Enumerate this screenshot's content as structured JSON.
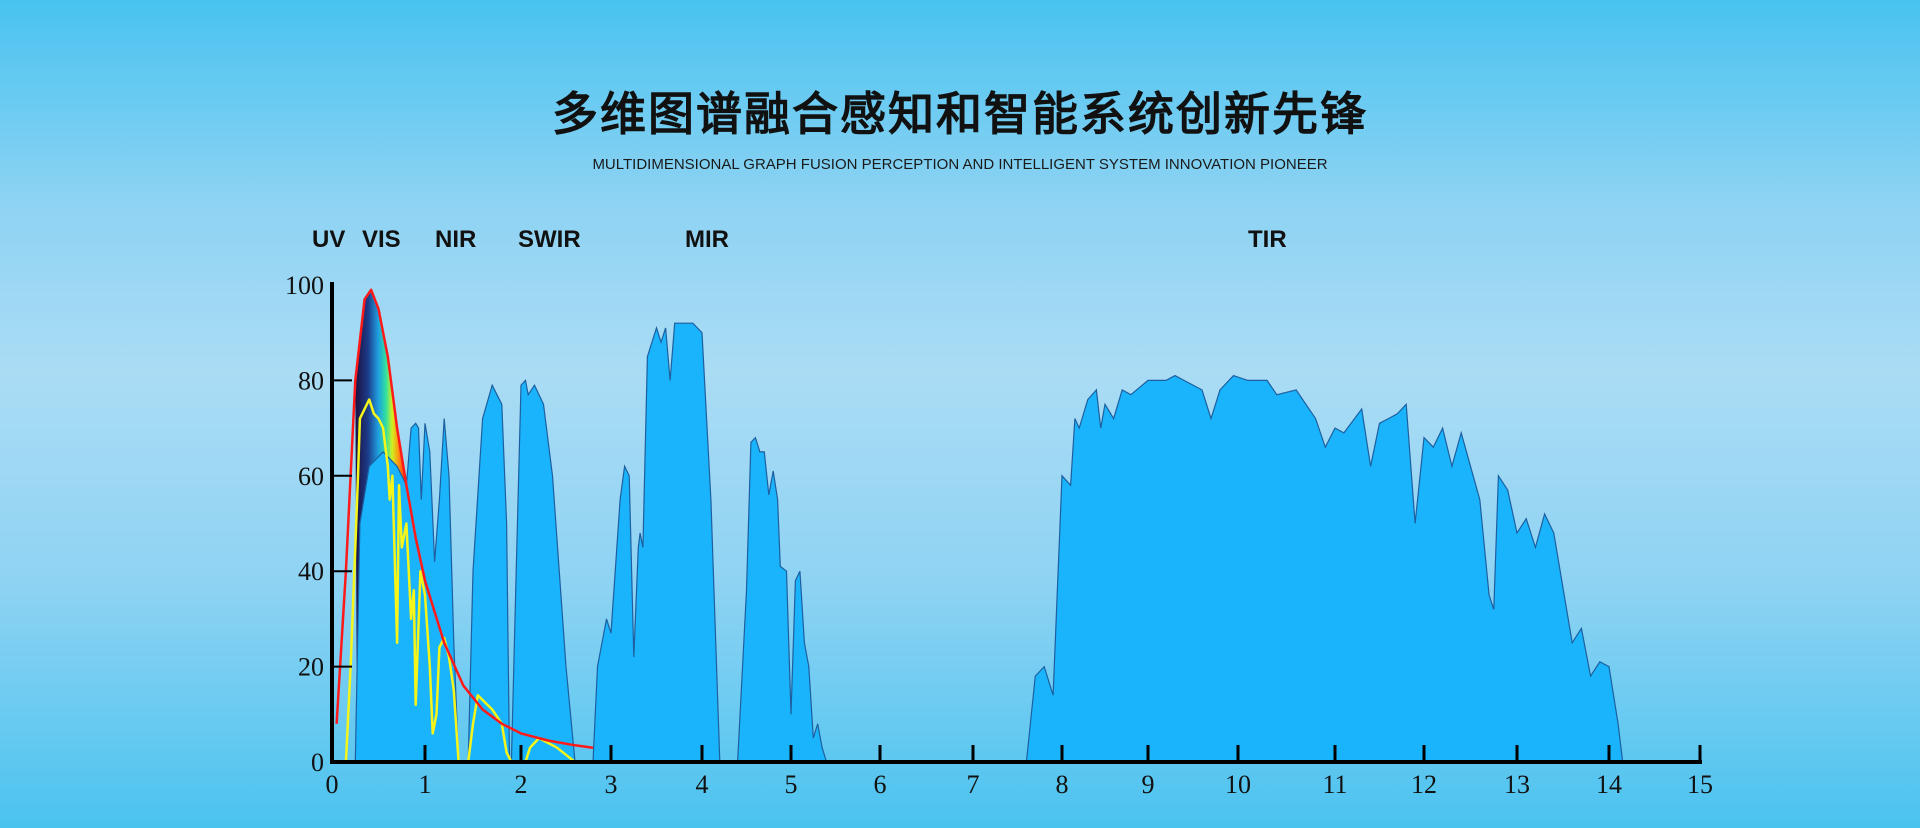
{
  "header": {
    "title": "多维图谱融合感知和智能系统创新先锋",
    "subtitle": "MULTIDIMENSIONAL GRAPH FUSION PERCEPTION AND INTELLIGENT SYSTEM INNOVATION PIONEER"
  },
  "chart_data": {
    "type": "area",
    "title": "",
    "xlabel": "",
    "ylabel": "",
    "xlim": [
      0,
      15
    ],
    "ylim": [
      0,
      100
    ],
    "x_ticks": [
      "0",
      "1",
      "2",
      "3",
      "4",
      "5",
      "6",
      "7",
      "8",
      "9",
      "10",
      "11",
      "12",
      "13",
      "14",
      "15"
    ],
    "y_ticks": [
      "0",
      "20",
      "40",
      "60",
      "80",
      "100"
    ],
    "grid": false,
    "band_labels": [
      "UV",
      "VIS",
      "NIR",
      "SWIR",
      "MIR",
      "TIR"
    ],
    "colors": {
      "transmission_fill": "#1ab4fc",
      "transmission_stroke": "#1d5fa0",
      "planck_curve": "#ff1a1a",
      "solar_curve": "#f5f51a"
    },
    "series": [
      {
        "kind": "transmission-area",
        "segments": [
          [
            [
              0.25,
              0
            ],
            [
              0.3,
              50
            ],
            [
              0.4,
              62
            ],
            [
              0.55,
              65
            ],
            [
              0.7,
              62
            ],
            [
              0.8,
              58
            ],
            [
              0.85,
              70
            ],
            [
              0.9,
              71
            ],
            [
              0.93,
              70
            ],
            [
              0.96,
              55
            ],
            [
              1.0,
              71
            ],
            [
              1.05,
              65
            ],
            [
              1.1,
              42
            ],
            [
              1.15,
              55
            ],
            [
              1.2,
              72
            ],
            [
              1.25,
              60
            ],
            [
              1.3,
              25
            ],
            [
              1.35,
              0
            ]
          ],
          [
            [
              1.45,
              0
            ],
            [
              1.5,
              40
            ],
            [
              1.6,
              72
            ],
            [
              1.7,
              79
            ],
            [
              1.8,
              75
            ],
            [
              1.85,
              50
            ],
            [
              1.88,
              0
            ]
          ],
          [
            [
              1.9,
              0
            ],
            [
              1.95,
              40
            ],
            [
              2.0,
              79
            ],
            [
              2.05,
              80
            ],
            [
              2.08,
              77
            ],
            [
              2.15,
              79
            ],
            [
              2.25,
              75
            ],
            [
              2.35,
              60
            ],
            [
              2.5,
              20
            ],
            [
              2.6,
              0
            ]
          ],
          [
            [
              2.8,
              0
            ],
            [
              2.85,
              20
            ],
            [
              2.95,
              30
            ],
            [
              3.0,
              27
            ],
            [
              3.1,
              55
            ],
            [
              3.15,
              62
            ],
            [
              3.2,
              60
            ],
            [
              3.25,
              22
            ],
            [
              3.3,
              45
            ],
            [
              3.32,
              48
            ],
            [
              3.35,
              45
            ],
            [
              3.4,
              85
            ],
            [
              3.5,
              91
            ],
            [
              3.55,
              88
            ],
            [
              3.6,
              91
            ],
            [
              3.65,
              80
            ],
            [
              3.7,
              92
            ],
            [
              3.9,
              92
            ],
            [
              4.0,
              90
            ],
            [
              4.1,
              55
            ],
            [
              4.2,
              0
            ]
          ],
          [
            [
              4.4,
              0
            ],
            [
              4.5,
              36
            ],
            [
              4.55,
              67
            ],
            [
              4.6,
              68
            ],
            [
              4.65,
              65
            ],
            [
              4.7,
              65
            ],
            [
              4.75,
              56
            ],
            [
              4.8,
              61
            ],
            [
              4.85,
              55
            ],
            [
              4.88,
              41
            ],
            [
              4.95,
              40
            ],
            [
              5.0,
              10
            ],
            [
              5.05,
              38
            ],
            [
              5.1,
              40
            ],
            [
              5.15,
              25
            ],
            [
              5.2,
              20
            ],
            [
              5.25,
              5
            ],
            [
              5.3,
              8
            ],
            [
              5.35,
              3
            ],
            [
              5.4,
              0
            ]
          ],
          [
            [
              7.6,
              0
            ],
            [
              7.7,
              18
            ],
            [
              7.8,
              20
            ],
            [
              7.9,
              14
            ],
            [
              8.0,
              60
            ],
            [
              8.1,
              58
            ],
            [
              8.15,
              72
            ],
            [
              8.2,
              70
            ],
            [
              8.3,
              76
            ],
            [
              8.4,
              78
            ],
            [
              8.45,
              70
            ],
            [
              8.5,
              75
            ],
            [
              8.6,
              72
            ],
            [
              8.7,
              78
            ],
            [
              8.8,
              77
            ],
            [
              9.0,
              80
            ],
            [
              9.2,
              80
            ],
            [
              9.3,
              81
            ],
            [
              9.4,
              80
            ],
            [
              9.6,
              78
            ],
            [
              9.7,
              72
            ],
            [
              9.8,
              78
            ],
            [
              9.95,
              81
            ],
            [
              10.1,
              80
            ],
            [
              10.3,
              80
            ],
            [
              10.4,
              77
            ],
            [
              10.6,
              78
            ],
            [
              10.7,
              75
            ],
            [
              10.8,
              72
            ],
            [
              10.9,
              66
            ],
            [
              11.0,
              70
            ],
            [
              11.1,
              69
            ],
            [
              11.3,
              74
            ],
            [
              11.4,
              62
            ],
            [
              11.5,
              71
            ],
            [
              11.6,
              72
            ],
            [
              11.7,
              73
            ],
            [
              11.8,
              75
            ],
            [
              11.9,
              50
            ],
            [
              12.0,
              68
            ],
            [
              12.1,
              66
            ],
            [
              12.2,
              70
            ],
            [
              12.3,
              62
            ],
            [
              12.4,
              69
            ],
            [
              12.6,
              55
            ],
            [
              12.7,
              35
            ],
            [
              12.75,
              32
            ],
            [
              12.8,
              60
            ],
            [
              12.9,
              57
            ],
            [
              13.0,
              48
            ],
            [
              13.1,
              51
            ],
            [
              13.2,
              45
            ],
            [
              13.3,
              52
            ],
            [
              13.4,
              48
            ],
            [
              13.6,
              25
            ],
            [
              13.7,
              28
            ],
            [
              13.8,
              18
            ],
            [
              13.9,
              21
            ],
            [
              14.0,
              20
            ],
            [
              14.1,
              8
            ],
            [
              14.15,
              0
            ]
          ]
        ]
      },
      {
        "kind": "planck-curve",
        "points": [
          [
            0.05,
            8
          ],
          [
            0.15,
            40
          ],
          [
            0.25,
            80
          ],
          [
            0.35,
            97
          ],
          [
            0.42,
            99
          ],
          [
            0.5,
            95
          ],
          [
            0.6,
            85
          ],
          [
            0.7,
            70
          ],
          [
            0.8,
            58
          ],
          [
            0.9,
            47
          ],
          [
            1.0,
            38
          ],
          [
            1.2,
            25
          ],
          [
            1.4,
            16
          ],
          [
            1.6,
            11
          ],
          [
            1.8,
            8
          ],
          [
            2.0,
            6
          ],
          [
            2.3,
            4.5
          ],
          [
            2.6,
            3.5
          ],
          [
            2.8,
            3
          ]
        ]
      },
      {
        "kind": "solar-curve",
        "points": [
          [
            0.15,
            0
          ],
          [
            0.2,
            20
          ],
          [
            0.25,
            45
          ],
          [
            0.28,
            60
          ],
          [
            0.3,
            72
          ],
          [
            0.35,
            74
          ],
          [
            0.4,
            76
          ],
          [
            0.45,
            73
          ],
          [
            0.5,
            72
          ],
          [
            0.55,
            70
          ],
          [
            0.6,
            62
          ],
          [
            0.62,
            55
          ],
          [
            0.65,
            60
          ],
          [
            0.7,
            25
          ],
          [
            0.72,
            58
          ],
          [
            0.75,
            45
          ],
          [
            0.8,
            50
          ],
          [
            0.85,
            30
          ],
          [
            0.88,
            36
          ],
          [
            0.9,
            12
          ],
          [
            0.95,
            40
          ],
          [
            1.0,
            35
          ],
          [
            1.05,
            20
          ],
          [
            1.08,
            6
          ],
          [
            1.12,
            10
          ],
          [
            1.15,
            24
          ],
          [
            1.2,
            26
          ],
          [
            1.25,
            22
          ],
          [
            1.3,
            15
          ],
          [
            1.35,
            0
          ],
          [
            1.45,
            0
          ],
          [
            1.5,
            8
          ],
          [
            1.55,
            14
          ],
          [
            1.6,
            13
          ],
          [
            1.7,
            11
          ],
          [
            1.8,
            8
          ],
          [
            1.85,
            2
          ],
          [
            1.9,
            0
          ],
          [
            2.05,
            0
          ],
          [
            2.1,
            3
          ],
          [
            2.15,
            4
          ],
          [
            2.2,
            5
          ],
          [
            2.3,
            4
          ],
          [
            2.4,
            3
          ],
          [
            2.5,
            1.5
          ],
          [
            2.6,
            0
          ]
        ]
      }
    ]
  }
}
